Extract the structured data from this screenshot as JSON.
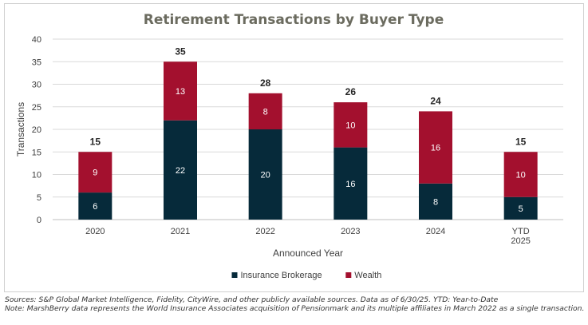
{
  "chart_data": {
    "type": "bar",
    "stacked": true,
    "title": "Retirement Transactions by Buyer Type",
    "xlabel": "Announced Year",
    "ylabel": "Transactions",
    "ylim": [
      0,
      40
    ],
    "yticks": [
      0,
      5,
      10,
      15,
      20,
      25,
      30,
      35,
      40
    ],
    "categories": [
      [
        "2020"
      ],
      [
        "2021"
      ],
      [
        "2022"
      ],
      [
        "2023"
      ],
      [
        "2024"
      ],
      [
        "YTD",
        "2025"
      ]
    ],
    "series": [
      {
        "name": "Insurance Brokerage",
        "values": [
          6,
          22,
          20,
          16,
          8,
          5
        ],
        "color": "#062a3a"
      },
      {
        "name": "Wealth",
        "values": [
          9,
          13,
          8,
          10,
          16,
          10
        ],
        "color": "#a3102e"
      }
    ],
    "totals": [
      15,
      35,
      28,
      26,
      24,
      15
    ],
    "grid": true,
    "legend_position": "bottom"
  },
  "colors": {
    "title": "#6b6b5f",
    "axis_text": "#404040",
    "gridline": "#d9d9d9",
    "segment_label": "#ffffff",
    "total_label": "#262626"
  },
  "footnotes": {
    "sources": "Sources: S&P Global Market Intelligence, Fidelity, CityWire, and other publicly available sources. Data as of 6/30/25. YTD: Year-to-Date",
    "note": "Note: MarshBerry data represents the World Insurance Associates acquisition of Pensionmark and its multiple affiliates in March 2022 as a single transaction."
  }
}
